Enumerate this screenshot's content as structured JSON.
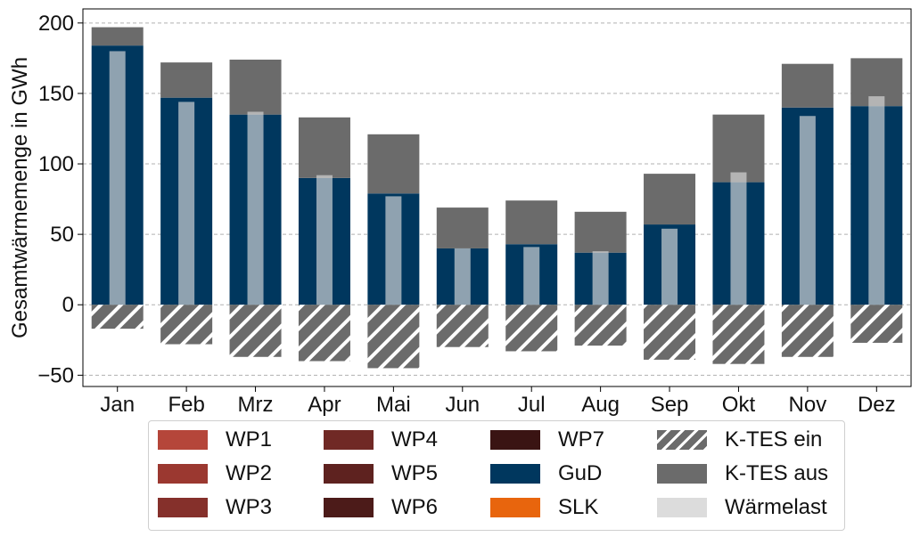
{
  "chart_data": {
    "type": "bar",
    "title": "",
    "xlabel": "",
    "ylabel": "Gesamtwärmemenge in GWh",
    "ylim": [
      -58,
      210
    ],
    "yticks": [
      -50,
      0,
      50,
      100,
      150,
      200
    ],
    "ytick_labels": [
      "−50",
      "0",
      "50",
      "100",
      "150",
      "200"
    ],
    "grid": "horizontal dashed",
    "categories": [
      "Jan",
      "Feb",
      "Mrz",
      "Apr",
      "Mai",
      "Jun",
      "Jul",
      "Aug",
      "Sep",
      "Okt",
      "Nov",
      "Dez"
    ],
    "series": [
      {
        "name": "WP1",
        "color": "#b5463a",
        "values": [
          0,
          0,
          0,
          0,
          0,
          0,
          0,
          0,
          0,
          0,
          0,
          0
        ]
      },
      {
        "name": "WP2",
        "color": "#9b3830",
        "values": [
          0,
          0,
          0,
          0,
          0,
          0,
          0,
          0,
          0,
          0,
          0,
          0
        ]
      },
      {
        "name": "WP3",
        "color": "#85302b",
        "values": [
          0,
          0,
          0,
          0,
          0,
          0,
          0,
          0,
          0,
          0,
          0,
          0
        ]
      },
      {
        "name": "WP4",
        "color": "#702925",
        "values": [
          0,
          0,
          0,
          0,
          0,
          0,
          0,
          0,
          0,
          0,
          0,
          0
        ]
      },
      {
        "name": "WP5",
        "color": "#5e221f",
        "values": [
          0,
          0,
          0,
          0,
          0,
          0,
          0,
          0,
          0,
          0,
          0,
          0
        ]
      },
      {
        "name": "WP6",
        "color": "#4c1b19",
        "values": [
          0,
          0,
          0,
          0,
          0,
          0,
          0,
          0,
          0,
          0,
          0,
          0
        ]
      },
      {
        "name": "WP7",
        "color": "#3a1413",
        "values": [
          0,
          0,
          0,
          0,
          0,
          0,
          0,
          0,
          0,
          0,
          0,
          0
        ]
      },
      {
        "name": "GuD",
        "color": "#00375e",
        "values": [
          184,
          147,
          135,
          90,
          79,
          40,
          43,
          37,
          57,
          87,
          140,
          141
        ]
      },
      {
        "name": "SLK",
        "color": "#e8650d",
        "values": [
          0,
          0,
          0,
          0,
          0,
          0,
          0,
          0,
          0,
          0,
          0,
          0
        ]
      },
      {
        "name": "K-TES ein",
        "color": "#6b6b6b",
        "hatch": true,
        "values": [
          -17,
          -28,
          -37,
          -40,
          -45,
          -30,
          -33,
          -29,
          -39,
          -42,
          -37,
          -27
        ]
      },
      {
        "name": "K-TES aus",
        "color": "#6b6b6b",
        "values": [
          13,
          25,
          39,
          43,
          42,
          29,
          31,
          29,
          36,
          48,
          31,
          34
        ]
      },
      {
        "name": "Wärmelast",
        "color": "#dcdcdc",
        "overlay": true,
        "values": [
          180,
          144,
          137,
          92,
          77,
          40,
          41,
          38,
          54,
          94,
          134,
          148
        ]
      }
    ],
    "legend_columns": [
      [
        "WP1",
        "WP2",
        "WP3"
      ],
      [
        "WP4",
        "WP5",
        "WP6"
      ],
      [
        "WP7",
        "GuD",
        "SLK"
      ],
      [
        "K-TES ein",
        "K-TES aus",
        "Wärmelast"
      ]
    ],
    "legend": "bottom-center"
  }
}
